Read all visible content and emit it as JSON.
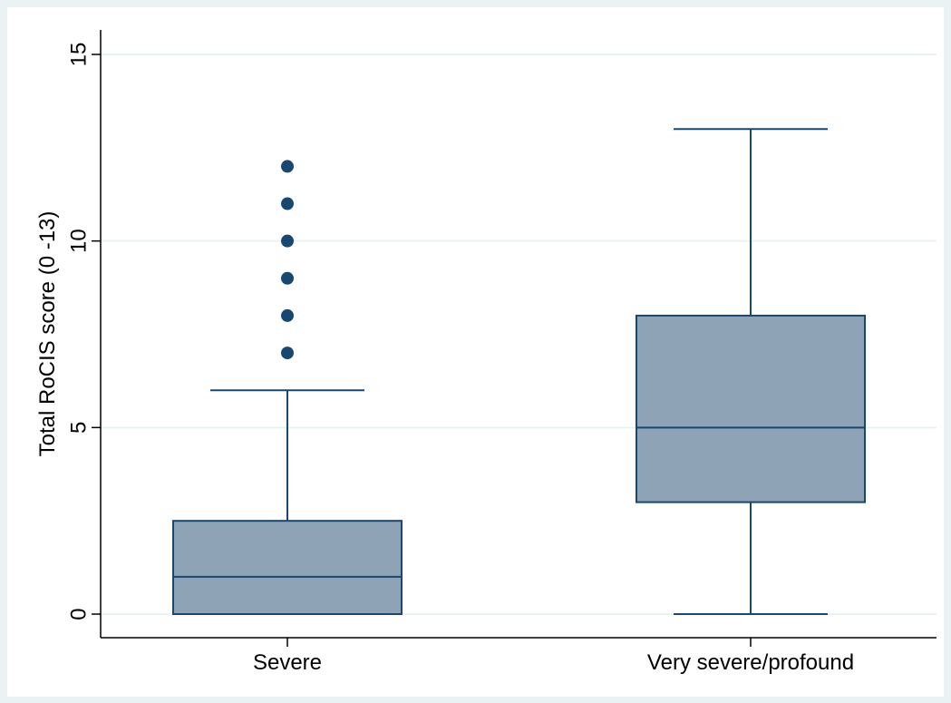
{
  "chart_data": {
    "type": "box",
    "ylabel": "Total RoCIS score (0 -13)",
    "xlabel": "",
    "ylim": [
      0,
      15
    ],
    "yticks": [
      0,
      5,
      10,
      15
    ],
    "grid": true,
    "categories": [
      "Severe",
      "Very severe/profound"
    ],
    "boxes": [
      {
        "category": "Severe",
        "whisker_low": 0,
        "q1": 0,
        "median": 1,
        "q3": 2.5,
        "whisker_high": 6,
        "outliers": [
          7,
          8,
          9,
          10,
          11,
          12
        ]
      },
      {
        "category": "Very severe/profound",
        "whisker_low": 0,
        "q1": 3,
        "median": 5,
        "q3": 8,
        "whisker_high": 13,
        "outliers": []
      }
    ],
    "colors": {
      "box_fill": "#8ea3b6",
      "box_stroke": "#1a476f",
      "outlier": "#1a476f",
      "plot_bg": "#ffffff",
      "outer_bg": "#eaf2f3",
      "grid": "#eaf2f3"
    }
  }
}
